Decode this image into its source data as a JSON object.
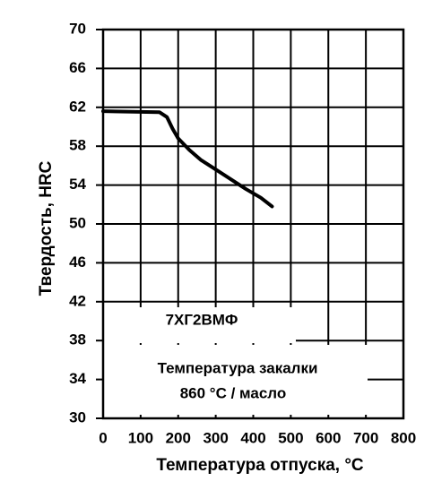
{
  "chart_data": {
    "type": "line",
    "xlabel": "Температура отпуска, °C",
    "ylabel": "Твердость, HRC",
    "x": [
      0,
      150,
      170,
      185,
      200,
      230,
      260,
      300,
      340,
      380,
      420,
      450
    ],
    "series": [
      {
        "name": "7ХГ2ВМФ",
        "color": "#000000",
        "values": [
          61.6,
          61.5,
          61.0,
          59.8,
          58.8,
          57.6,
          56.6,
          55.6,
          54.6,
          53.6,
          52.7,
          51.8
        ]
      }
    ],
    "annotations": [
      "7ХГ2ВМФ",
      "Температура закалки",
      "860 °C / масло"
    ],
    "xlim": [
      0,
      800
    ],
    "xticks": [
      0,
      100,
      200,
      300,
      400,
      500,
      600,
      700,
      800
    ],
    "ylim": [
      30,
      70
    ],
    "yticks": [
      30,
      34,
      38,
      42,
      46,
      50,
      54,
      58,
      62,
      66,
      70
    ],
    "grid": true
  }
}
